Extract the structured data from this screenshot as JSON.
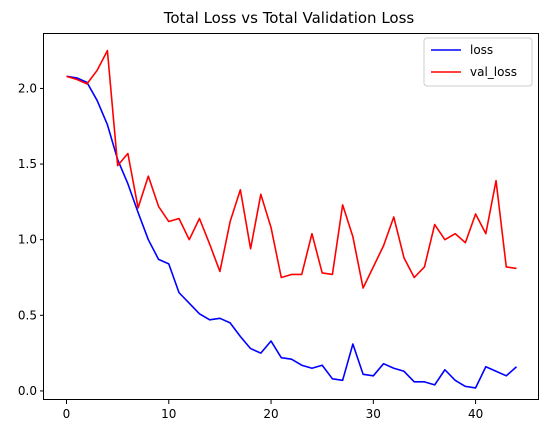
{
  "chart_data": {
    "type": "line",
    "title": "Total Loss vs Total Validation Loss",
    "xlabel": "",
    "ylabel": "",
    "xlim": [
      -2.2,
      46.2
    ],
    "ylim": [
      -0.06,
      2.36
    ],
    "xticks": [
      0,
      10,
      20,
      30,
      40
    ],
    "yticks": [
      0.0,
      0.5,
      1.0,
      1.5,
      2.0
    ],
    "xtick_labels": [
      "0",
      "10",
      "20",
      "30",
      "40"
    ],
    "ytick_labels": [
      "0.0",
      "0.5",
      "1.0",
      "1.5",
      "2.0"
    ],
    "grid": false,
    "legend_position": "upper right",
    "x": [
      0,
      1,
      2,
      3,
      4,
      5,
      6,
      7,
      8,
      9,
      10,
      11,
      12,
      13,
      14,
      15,
      16,
      17,
      18,
      19,
      20,
      21,
      22,
      23,
      24,
      25,
      26,
      27,
      28,
      29,
      30,
      31,
      32,
      33,
      34,
      35,
      36,
      37,
      38,
      39,
      40,
      41,
      42,
      43,
      44
    ],
    "series": [
      {
        "name": "loss",
        "color": "#0000ff",
        "values": [
          2.08,
          2.07,
          2.04,
          1.92,
          1.76,
          1.53,
          1.37,
          1.18,
          1.0,
          0.87,
          0.84,
          0.65,
          0.58,
          0.51,
          0.47,
          0.48,
          0.45,
          0.36,
          0.28,
          0.25,
          0.33,
          0.22,
          0.21,
          0.17,
          0.15,
          0.17,
          0.08,
          0.07,
          0.31,
          0.11,
          0.1,
          0.18,
          0.15,
          0.13,
          0.06,
          0.06,
          0.04,
          0.14,
          0.07,
          0.03,
          0.02,
          0.16,
          0.13,
          0.1,
          0.16
        ]
      },
      {
        "name": "val_loss",
        "color": "#ff0000",
        "values": [
          2.08,
          2.06,
          2.03,
          2.12,
          2.25,
          1.49,
          1.57,
          1.21,
          1.42,
          1.22,
          1.12,
          1.14,
          1.0,
          1.14,
          0.97,
          0.79,
          1.12,
          1.33,
          0.94,
          1.3,
          1.08,
          0.75,
          0.77,
          0.77,
          1.04,
          0.78,
          0.77,
          1.23,
          1.02,
          0.68,
          0.82,
          0.96,
          1.15,
          0.88,
          0.75,
          0.82,
          1.1,
          1.0,
          1.04,
          0.98,
          1.17,
          1.04,
          1.39,
          0.82,
          0.81
        ]
      }
    ]
  }
}
